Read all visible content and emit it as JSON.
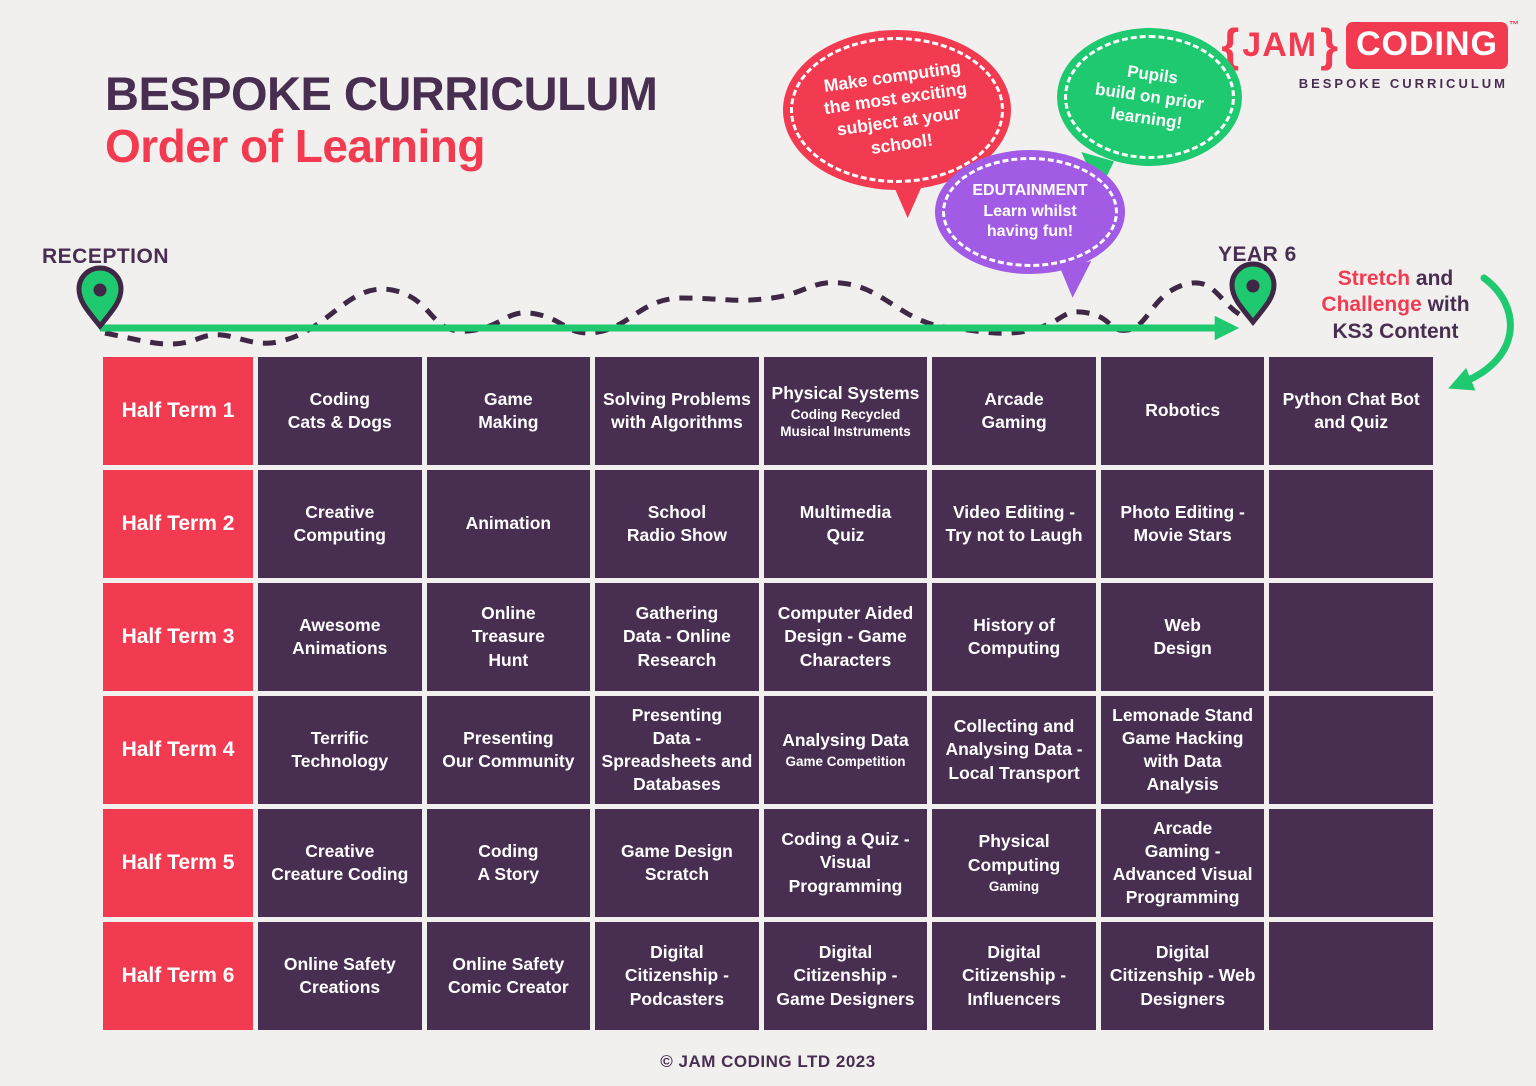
{
  "title": {
    "line1": "BESPOKE CURRICULUM",
    "line2": "Order of Learning"
  },
  "logo": {
    "brace_left": "{",
    "jam": "JAM",
    "brace_right": "}",
    "coding": "CODING",
    "tm": "™",
    "tagline": "BESPOKE CURRICULUM"
  },
  "bubbles": {
    "red": "Make computing\nthe most exciting\nsubject at your\nschool!",
    "green": "Pupils\nbuild on prior\nlearning!",
    "purple": "EDUTAINMENT\nLearn whilst\nhaving fun!"
  },
  "timeline": {
    "start_label": "RECEPTION",
    "end_label": "YEAR 6"
  },
  "stretch": {
    "red1": "Stretch",
    "plain1": " and ",
    "red2": "Challenge",
    "plain2": " with ",
    "line3": "KS3 Content"
  },
  "table": {
    "rows": [
      {
        "label": "Half Term 1",
        "cells": [
          {
            "title": "Coding\nCats & Dogs"
          },
          {
            "title": "Game\nMaking"
          },
          {
            "title": "Solving Problems\nwith Algorithms"
          },
          {
            "title": "Physical Systems",
            "sub": "Coding Recycled\nMusical Instruments"
          },
          {
            "title": "Arcade\nGaming"
          },
          {
            "title": "Robotics"
          },
          {
            "title": "Python Chat Bot\nand Quiz"
          }
        ]
      },
      {
        "label": "Half Term 2",
        "cells": [
          {
            "title": "Creative\nComputing"
          },
          {
            "title": "Animation"
          },
          {
            "title": "School\nRadio Show"
          },
          {
            "title": "Multimedia\nQuiz"
          },
          {
            "title": "Video Editing -\nTry not to Laugh"
          },
          {
            "title": "Photo Editing -\nMovie Stars"
          },
          null
        ]
      },
      {
        "label": "Half Term 3",
        "cells": [
          {
            "title": "Awesome\nAnimations"
          },
          {
            "title": "Online\nTreasure\nHunt"
          },
          {
            "title": "Gathering\nData - Online\nResearch"
          },
          {
            "title": "Computer Aided\nDesign - Game\nCharacters"
          },
          {
            "title": "History of\nComputing"
          },
          {
            "title": "Web\nDesign"
          },
          null
        ]
      },
      {
        "label": "Half Term 4",
        "cells": [
          {
            "title": "Terrific\nTechnology"
          },
          {
            "title": "Presenting\nOur Community"
          },
          {
            "title": "Presenting\nData -\nSpreadsheets and\nDatabases"
          },
          {
            "title": "Analysing Data",
            "sub": "Game Competition"
          },
          {
            "title": "Collecting and\nAnalysing Data -\nLocal Transport"
          },
          {
            "title": "Lemonade Stand\nGame Hacking\nwith Data Analysis"
          },
          null
        ]
      },
      {
        "label": "Half Term 5",
        "cells": [
          {
            "title": "Creative\nCreature Coding"
          },
          {
            "title": "Coding\nA Story"
          },
          {
            "title": "Game Design\nScratch"
          },
          {
            "title": "Coding a Quiz -\nVisual\nProgramming"
          },
          {
            "title": "Physical\nComputing",
            "sub": "Gaming"
          },
          {
            "title": "Arcade\nGaming -\nAdvanced Visual\nProgramming"
          },
          null
        ]
      },
      {
        "label": "Half Term 6",
        "cells": [
          {
            "title": "Online Safety\nCreations"
          },
          {
            "title": "Online Safety\nComic Creator"
          },
          {
            "title": "Digital\nCitizenship -\nPodcasters"
          },
          {
            "title": "Digital\nCitizenship -\nGame Designers"
          },
          {
            "title": "Digital\nCitizenship -\nInfluencers"
          },
          {
            "title": "Digital\nCitizenship - Web\nDesigners"
          },
          null
        ]
      }
    ]
  },
  "footer": {
    "copyright": "© JAM CODING LTD 2023"
  },
  "colors": {
    "red": "#F23B50",
    "purple": "#482E50",
    "purple_deep": "#3E2846",
    "green": "#1FC96F",
    "violet": "#A15BE5",
    "background": "#F2F0EF"
  }
}
